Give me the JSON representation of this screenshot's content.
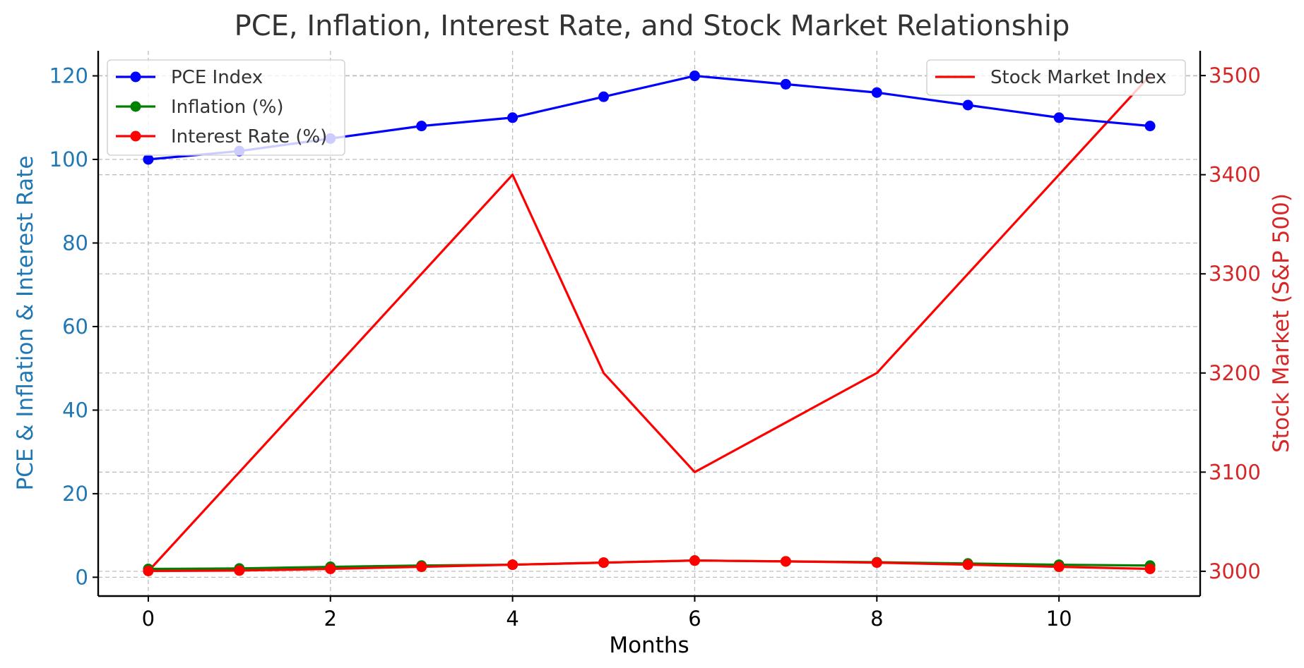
{
  "chart_data": {
    "type": "line",
    "title": "PCE, Inflation, Interest Rate, and Stock Market Relationship",
    "xlabel": "Months",
    "ylabel_left": "PCE & Inflation & Interest Rate",
    "ylabel_right": "Stock Market (S&P 500)",
    "x": [
      0,
      1,
      2,
      3,
      4,
      5,
      6,
      7,
      8,
      9,
      10,
      11
    ],
    "xlim": [
      -0.55,
      11.55
    ],
    "xticks": [
      0,
      2,
      4,
      6,
      8,
      10
    ],
    "ylim_left": [
      -4.5,
      126
    ],
    "yticks_left": [
      0,
      20,
      40,
      60,
      80,
      100,
      120
    ],
    "ylim_right": [
      2975,
      3525
    ],
    "yticks_right": [
      3000,
      3100,
      3200,
      3300,
      3400,
      3500
    ],
    "grid": true,
    "series_left": [
      {
        "name": "PCE Index",
        "color": "#0000ff",
        "marker": true,
        "values": [
          100,
          102,
          105,
          108,
          110,
          115,
          120,
          118,
          116,
          113,
          110,
          108
        ]
      },
      {
        "name": "Inflation (%)",
        "color": "#008000",
        "marker": true,
        "values": [
          2.0,
          2.1,
          2.5,
          2.8,
          3.0,
          3.5,
          4.0,
          3.8,
          3.6,
          3.3,
          3.0,
          2.8
        ]
      },
      {
        "name": "Interest Rate (%)",
        "color": "#ff0000",
        "marker": true,
        "values": [
          1.5,
          1.6,
          2.0,
          2.5,
          3.0,
          3.5,
          4.0,
          3.8,
          3.5,
          3.0,
          2.5,
          2.0
        ]
      }
    ],
    "series_right": [
      {
        "name": "Stock Market Index",
        "color": "#ff0000",
        "marker": false,
        "values": [
          3000,
          3100,
          3200,
          3300,
          3400,
          3200,
          3100,
          3150,
          3200,
          3300,
          3400,
          3500
        ]
      }
    ],
    "legend_left_placement": "upper-left",
    "legend_right_placement": "upper-right",
    "left_axis_color": "#1f77b4",
    "right_axis_color": "#d62728"
  }
}
